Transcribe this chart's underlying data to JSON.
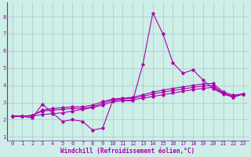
{
  "xlabel": "Windchill (Refroidissement éolien,°C)",
  "bg_color": "#ceeee8",
  "grid_color": "#aac8c4",
  "line_color": "#aa00aa",
  "spine_color": "#554488",
  "xlim": [
    -0.5,
    23.5
  ],
  "ylim": [
    0.8,
    8.8
  ],
  "yticks": [
    1,
    2,
    3,
    4,
    5,
    6,
    7,
    8
  ],
  "xticks": [
    0,
    1,
    2,
    3,
    4,
    5,
    6,
    7,
    8,
    9,
    10,
    11,
    12,
    13,
    14,
    15,
    16,
    17,
    18,
    19,
    20,
    21,
    22,
    23
  ],
  "series": [
    [
      2.2,
      2.2,
      2.1,
      2.9,
      2.4,
      1.9,
      2.0,
      1.9,
      1.4,
      1.5,
      3.1,
      3.1,
      3.1,
      5.2,
      8.2,
      7.0,
      5.3,
      4.7,
      4.9,
      4.3,
      3.8,
      3.5,
      3.3,
      3.5
    ],
    [
      2.2,
      2.2,
      2.2,
      2.3,
      2.35,
      2.4,
      2.5,
      2.6,
      2.7,
      2.85,
      3.05,
      3.1,
      3.15,
      3.25,
      3.35,
      3.45,
      3.55,
      3.65,
      3.75,
      3.82,
      3.88,
      3.52,
      3.32,
      3.5
    ],
    [
      2.2,
      2.2,
      2.25,
      2.5,
      2.55,
      2.6,
      2.65,
      2.65,
      2.75,
      2.95,
      3.15,
      3.2,
      3.25,
      3.35,
      3.5,
      3.6,
      3.7,
      3.78,
      3.88,
      3.96,
      3.98,
      3.55,
      3.35,
      3.5
    ],
    [
      2.2,
      2.2,
      2.25,
      2.55,
      2.65,
      2.7,
      2.75,
      2.75,
      2.85,
      3.05,
      3.2,
      3.25,
      3.3,
      3.45,
      3.6,
      3.72,
      3.82,
      3.9,
      4.0,
      4.08,
      4.1,
      3.62,
      3.42,
      3.5
    ]
  ],
  "tick_fontsize": 5.0,
  "xlabel_fontsize": 5.5
}
